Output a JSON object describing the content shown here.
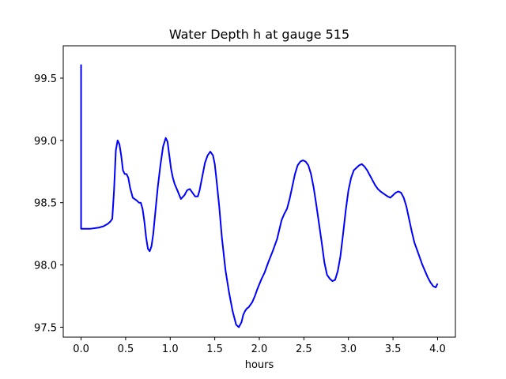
{
  "chart_data": {
    "type": "line",
    "title": "Water Depth h at gauge 515",
    "xlabel": "hours",
    "ylabel": "",
    "xlim": [
      -0.2,
      4.2
    ],
    "ylim": [
      97.42,
      99.76
    ],
    "xticks": [
      0.0,
      0.5,
      1.0,
      1.5,
      2.0,
      2.5,
      3.0,
      3.5,
      4.0
    ],
    "xtick_labels": [
      "0.0",
      "0.5",
      "1.0",
      "1.5",
      "2.0",
      "2.5",
      "3.0",
      "3.5",
      "4.0"
    ],
    "yticks": [
      97.5,
      98.0,
      98.5,
      99.0,
      99.5
    ],
    "ytick_labels": [
      "97.5",
      "98.0",
      "98.5",
      "99.0",
      "99.5"
    ],
    "grid": false,
    "series": [
      {
        "color": "#0000ff",
        "x": [
          0.0,
          0.0,
          0.0,
          0.1,
          0.2,
          0.25,
          0.3,
          0.33,
          0.35,
          0.37,
          0.39,
          0.41,
          0.43,
          0.45,
          0.47,
          0.49,
          0.51,
          0.53,
          0.55,
          0.58,
          0.62,
          0.65,
          0.67,
          0.69,
          0.71,
          0.73,
          0.75,
          0.77,
          0.79,
          0.81,
          0.83,
          0.86,
          0.89,
          0.92,
          0.95,
          0.97,
          0.99,
          1.01,
          1.03,
          1.05,
          1.08,
          1.12,
          1.16,
          1.19,
          1.22,
          1.25,
          1.28,
          1.31,
          1.33,
          1.36,
          1.39,
          1.42,
          1.45,
          1.48,
          1.5,
          1.52,
          1.55,
          1.58,
          1.62,
          1.66,
          1.7,
          1.74,
          1.77,
          1.8,
          1.82,
          1.84,
          1.86,
          1.88,
          1.9,
          1.92,
          1.95,
          1.98,
          2.02,
          2.06,
          2.1,
          2.15,
          2.2,
          2.25,
          2.28,
          2.31,
          2.34,
          2.37,
          2.4,
          2.43,
          2.46,
          2.49,
          2.52,
          2.55,
          2.58,
          2.61,
          2.64,
          2.67,
          2.7,
          2.73,
          2.76,
          2.79,
          2.82,
          2.85,
          2.88,
          2.91,
          2.94,
          2.97,
          3.0,
          3.03,
          3.06,
          3.09,
          3.12,
          3.15,
          3.18,
          3.21,
          3.24,
          3.27,
          3.3,
          3.33,
          3.36,
          3.4,
          3.44,
          3.47,
          3.5,
          3.53,
          3.56,
          3.59,
          3.62,
          3.65,
          3.68,
          3.71,
          3.74,
          3.77,
          3.8,
          3.83,
          3.86,
          3.89,
          3.92,
          3.95,
          3.98,
          4.0
        ],
        "y": [
          99.61,
          98.82,
          98.29,
          98.29,
          98.3,
          98.31,
          98.33,
          98.35,
          98.37,
          98.6,
          98.92,
          99.0,
          98.97,
          98.88,
          98.76,
          98.73,
          98.73,
          98.7,
          98.62,
          98.54,
          98.52,
          98.5,
          98.5,
          98.45,
          98.35,
          98.22,
          98.13,
          98.11,
          98.15,
          98.25,
          98.4,
          98.62,
          98.8,
          98.95,
          99.02,
          98.99,
          98.88,
          98.77,
          98.7,
          98.65,
          98.6,
          98.53,
          98.56,
          98.6,
          98.61,
          98.58,
          98.55,
          98.55,
          98.6,
          98.71,
          98.82,
          98.88,
          98.91,
          98.88,
          98.81,
          98.68,
          98.47,
          98.22,
          97.96,
          97.78,
          97.63,
          97.52,
          97.5,
          97.54,
          97.6,
          97.63,
          97.65,
          97.66,
          97.68,
          97.7,
          97.75,
          97.81,
          97.88,
          97.94,
          98.02,
          98.11,
          98.21,
          98.36,
          98.41,
          98.45,
          98.53,
          98.63,
          98.73,
          98.8,
          98.83,
          98.84,
          98.83,
          98.8,
          98.73,
          98.62,
          98.48,
          98.33,
          98.18,
          98.02,
          97.92,
          97.89,
          97.87,
          97.88,
          97.95,
          98.07,
          98.25,
          98.44,
          98.6,
          98.7,
          98.76,
          98.78,
          98.8,
          98.81,
          98.79,
          98.76,
          98.72,
          98.68,
          98.64,
          98.61,
          98.59,
          98.57,
          98.55,
          98.54,
          98.56,
          98.58,
          98.59,
          98.58,
          98.54,
          98.47,
          98.37,
          98.27,
          98.18,
          98.12,
          98.06,
          98.0,
          97.95,
          97.9,
          97.86,
          97.83,
          97.82,
          97.85
        ]
      }
    ]
  }
}
